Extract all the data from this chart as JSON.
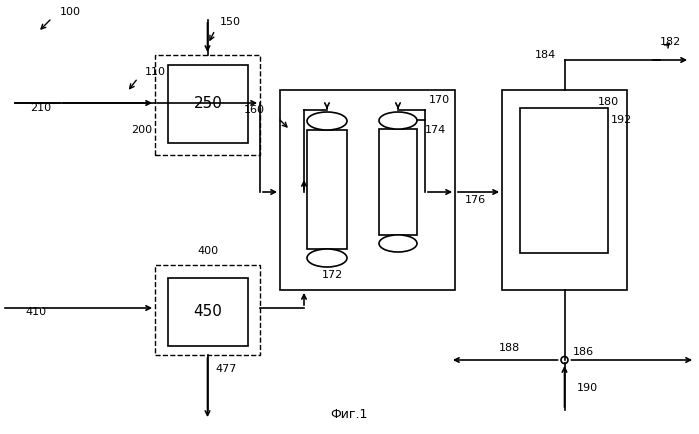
{
  "bg_color": "#ffffff",
  "label_100": "100",
  "label_110": "110",
  "label_150": "150",
  "label_160": "160",
  "label_170": "170",
  "label_172": "172",
  "label_174": "174",
  "label_176": "176",
  "label_180": "180",
  "label_182": "182",
  "label_184": "184",
  "label_186": "186",
  "label_188": "188",
  "label_190": "190",
  "label_192": "192",
  "label_200": "200",
  "label_210": "210",
  "label_250": "250",
  "label_400": "400",
  "label_410": "410",
  "label_450": "450",
  "label_477": "477",
  "caption": "Фиг.1"
}
